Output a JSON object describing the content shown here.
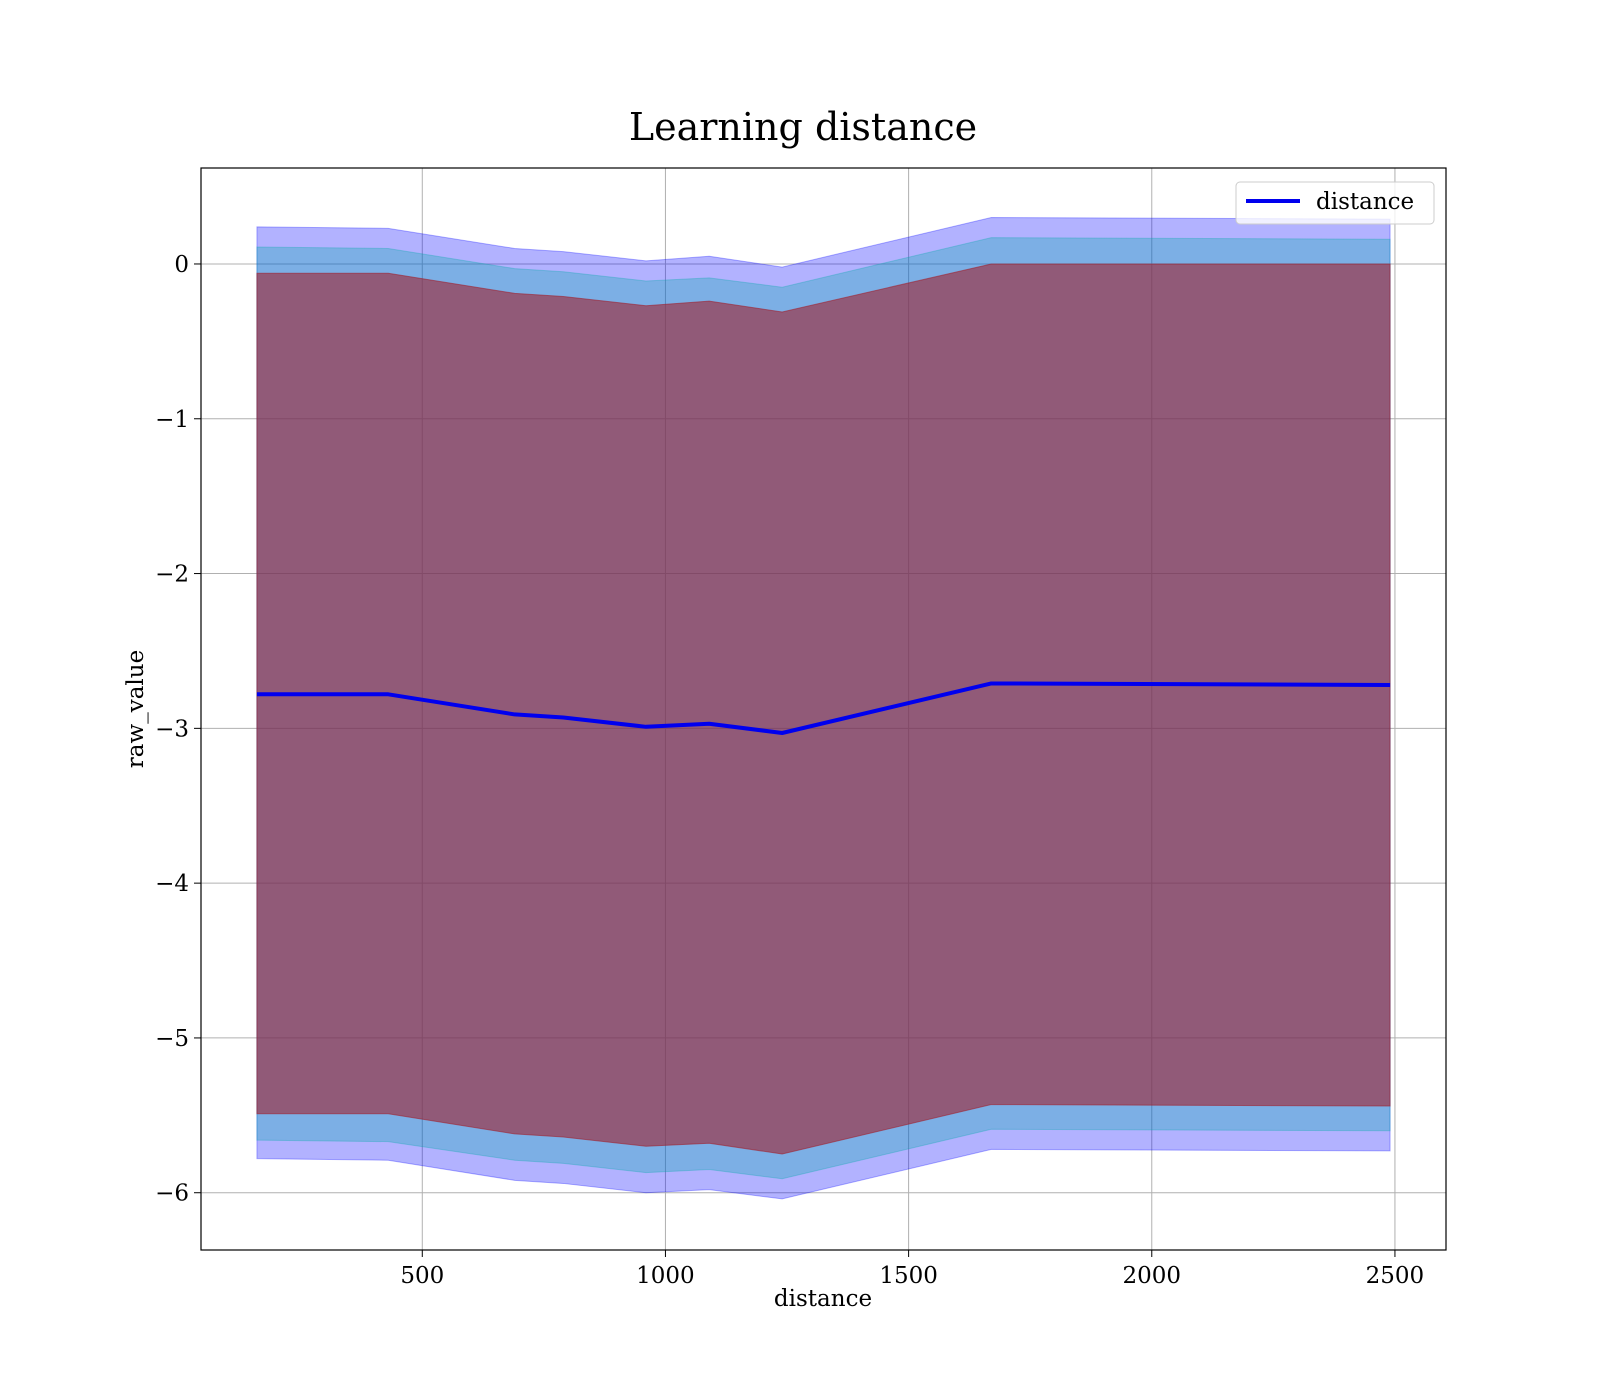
{
  "chart_data": {
    "type": "line",
    "title": "Learning distance",
    "xlabel": "distance",
    "ylabel": "raw_value",
    "xlim": [
      45,
      2605
    ],
    "ylim": [
      -6.37,
      0.62
    ],
    "xticks": [
      500,
      1000,
      1500,
      2000,
      2500
    ],
    "yticks": [
      0,
      -1,
      -2,
      -3,
      -4,
      -5,
      -6
    ],
    "xtick_labels": [
      "500",
      "1000",
      "1500",
      "2000",
      "2500"
    ],
    "ytick_labels": [
      "0",
      "−1",
      "−2",
      "−3",
      "−4",
      "−5",
      "−6"
    ],
    "grid": true,
    "legend": {
      "placement": "top-right",
      "entries": [
        "distance"
      ]
    },
    "x": [
      160,
      430,
      690,
      790,
      960,
      1090,
      1240,
      1670,
      2490
    ],
    "series": [
      {
        "name": "distance",
        "color": "#0000ee",
        "values": [
          -2.78,
          -2.78,
          -2.91,
          -2.93,
          -2.99,
          -2.97,
          -3.03,
          -2.71,
          -2.72
        ]
      }
    ],
    "bands": [
      {
        "color": "#0000ff",
        "opacity": 0.3,
        "upper": [
          0.24,
          0.23,
          0.1,
          0.08,
          0.02,
          0.05,
          -0.02,
          0.3,
          0.29
        ],
        "lower": [
          -5.78,
          -5.79,
          -5.92,
          -5.94,
          -6.0,
          -5.98,
          -6.04,
          -5.72,
          -5.73
        ]
      },
      {
        "color": "#00aaaa",
        "opacity": 0.3,
        "upper": [
          0.11,
          0.1,
          -0.03,
          -0.05,
          -0.11,
          -0.09,
          -0.15,
          0.17,
          0.16
        ],
        "lower": [
          -5.66,
          -5.67,
          -5.79,
          -5.81,
          -5.87,
          -5.85,
          -5.91,
          -5.59,
          -5.6
        ]
      },
      {
        "color": "#a0212e",
        "opacity": 0.6,
        "upper": [
          -0.06,
          -0.06,
          -0.19,
          -0.21,
          -0.27,
          -0.24,
          -0.31,
          0.0,
          0.0
        ],
        "lower": [
          -5.49,
          -5.49,
          -5.62,
          -5.64,
          -5.7,
          -5.68,
          -5.75,
          -5.43,
          -5.44
        ]
      }
    ]
  }
}
